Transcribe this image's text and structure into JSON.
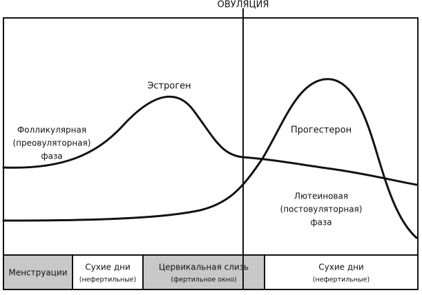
{
  "ovulation": "ОВУЛЯЦИЯ",
  "estrogen": "Эстроген",
  "progesterone": "Прогестерон",
  "follicular_phase": [
    "Фолликулярная",
    "(преовуляторная)",
    "фаза"
  ],
  "luteal_phase": [
    "Лютеиновая",
    "(постовуляторная)",
    "фаза"
  ],
  "phases": [
    {
      "label": "Менструации"
    },
    {
      "label": "Сухие дни",
      "note": "(нефертильные)"
    },
    {
      "label": "Цервикальная слизь",
      "note": "(фертильное окно)"
    },
    {
      "label": "Сухие дни",
      "note": "(нефертильные)"
    }
  ]
}
